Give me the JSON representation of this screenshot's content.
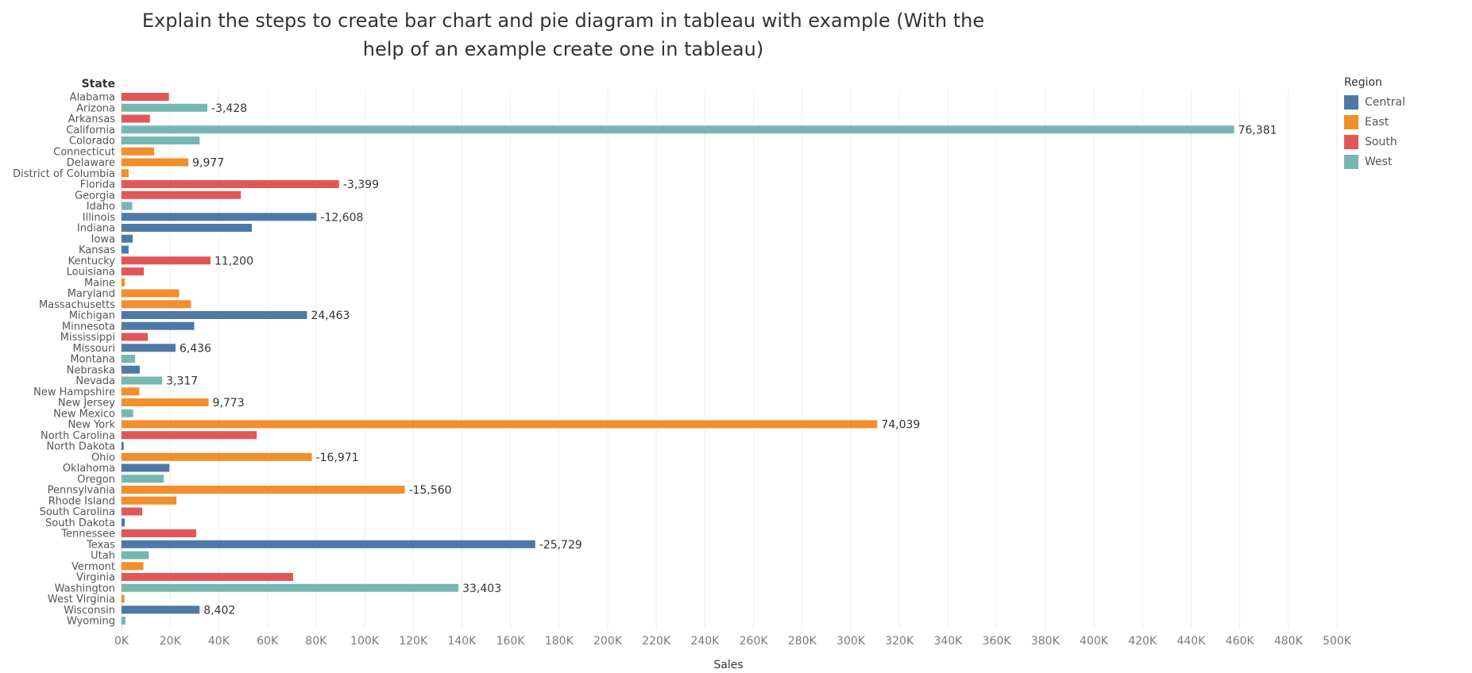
{
  "chart_data": {
    "type": "bar",
    "orientation": "horizontal",
    "title_lines": [
      "Explain the steps to create bar chart and pie diagram in tableau with example (With the",
      "help of an example create one in tableau)"
    ],
    "row_header": "State",
    "xlabel": "Sales",
    "xlim": [
      0,
      500000
    ],
    "x_ticks": [
      0,
      20000,
      40000,
      60000,
      80000,
      100000,
      120000,
      140000,
      160000,
      180000,
      200000,
      220000,
      240000,
      260000,
      280000,
      300000,
      320000,
      340000,
      360000,
      380000,
      400000,
      420000,
      440000,
      460000,
      480000,
      500000
    ],
    "x_tick_labels": [
      "0K",
      "20K",
      "40K",
      "60K",
      "80K",
      "100K",
      "120K",
      "140K",
      "160K",
      "180K",
      "200K",
      "220K",
      "240K",
      "260K",
      "280K",
      "300K",
      "320K",
      "340K",
      "360K",
      "380K",
      "400K",
      "420K",
      "440K",
      "460K",
      "480K",
      "500K"
    ],
    "grid": true,
    "legend": {
      "title": "Region",
      "position": "right",
      "items": [
        {
          "name": "Central",
          "color": "#4e79a7"
        },
        {
          "name": "East",
          "color": "#f28e2b"
        },
        {
          "name": "South",
          "color": "#e15759"
        },
        {
          "name": "West",
          "color": "#76b7b2"
        }
      ]
    },
    "rows": [
      {
        "state": "Alabama",
        "region": "South",
        "sales": 19500,
        "label": ""
      },
      {
        "state": "Arizona",
        "region": "West",
        "sales": 35300,
        "label": "-3,428"
      },
      {
        "state": "Arkansas",
        "region": "South",
        "sales": 11700,
        "label": ""
      },
      {
        "state": "California",
        "region": "West",
        "sales": 457700,
        "label": "76,381"
      },
      {
        "state": "Colorado",
        "region": "West",
        "sales": 32100,
        "label": ""
      },
      {
        "state": "Connecticut",
        "region": "East",
        "sales": 13400,
        "label": ""
      },
      {
        "state": "Delaware",
        "region": "East",
        "sales": 27500,
        "label": "9,977"
      },
      {
        "state": "District of Columbia",
        "region": "East",
        "sales": 2900,
        "label": ""
      },
      {
        "state": "Florida",
        "region": "South",
        "sales": 89500,
        "label": "-3,399"
      },
      {
        "state": "Georgia",
        "region": "South",
        "sales": 49100,
        "label": ""
      },
      {
        "state": "Idaho",
        "region": "West",
        "sales": 4400,
        "label": ""
      },
      {
        "state": "Illinois",
        "region": "Central",
        "sales": 80200,
        "label": "-12,608"
      },
      {
        "state": "Indiana",
        "region": "Central",
        "sales": 53600,
        "label": ""
      },
      {
        "state": "Iowa",
        "region": "Central",
        "sales": 4600,
        "label": ""
      },
      {
        "state": "Kansas",
        "region": "Central",
        "sales": 2900,
        "label": ""
      },
      {
        "state": "Kentucky",
        "region": "South",
        "sales": 36600,
        "label": "11,200"
      },
      {
        "state": "Louisiana",
        "region": "South",
        "sales": 9200,
        "label": ""
      },
      {
        "state": "Maine",
        "region": "East",
        "sales": 1300,
        "label": ""
      },
      {
        "state": "Maryland",
        "region": "East",
        "sales": 23700,
        "label": ""
      },
      {
        "state": "Massachusetts",
        "region": "East",
        "sales": 28600,
        "label": ""
      },
      {
        "state": "Michigan",
        "region": "Central",
        "sales": 76300,
        "label": "24,463"
      },
      {
        "state": "Minnesota",
        "region": "Central",
        "sales": 29900,
        "label": ""
      },
      {
        "state": "Mississippi",
        "region": "South",
        "sales": 10800,
        "label": ""
      },
      {
        "state": "Missouri",
        "region": "Central",
        "sales": 22200,
        "label": "6,436"
      },
      {
        "state": "Montana",
        "region": "West",
        "sales": 5600,
        "label": ""
      },
      {
        "state": "Nebraska",
        "region": "Central",
        "sales": 7500,
        "label": ""
      },
      {
        "state": "Nevada",
        "region": "West",
        "sales": 16700,
        "label": "3,317"
      },
      {
        "state": "New Hampshire",
        "region": "East",
        "sales": 7300,
        "label": ""
      },
      {
        "state": "New Jersey",
        "region": "East",
        "sales": 35800,
        "label": "9,773"
      },
      {
        "state": "New Mexico",
        "region": "West",
        "sales": 4800,
        "label": ""
      },
      {
        "state": "New York",
        "region": "East",
        "sales": 310900,
        "label": "74,039"
      },
      {
        "state": "North Carolina",
        "region": "South",
        "sales": 55600,
        "label": ""
      },
      {
        "state": "North Dakota",
        "region": "Central",
        "sales": 900,
        "label": ""
      },
      {
        "state": "Ohio",
        "region": "East",
        "sales": 78300,
        "label": "-16,971"
      },
      {
        "state": "Oklahoma",
        "region": "Central",
        "sales": 19700,
        "label": ""
      },
      {
        "state": "Oregon",
        "region": "West",
        "sales": 17400,
        "label": ""
      },
      {
        "state": "Pennsylvania",
        "region": "East",
        "sales": 116500,
        "label": "-15,560"
      },
      {
        "state": "Rhode Island",
        "region": "East",
        "sales": 22600,
        "label": ""
      },
      {
        "state": "South Carolina",
        "region": "South",
        "sales": 8500,
        "label": ""
      },
      {
        "state": "South Dakota",
        "region": "Central",
        "sales": 1300,
        "label": ""
      },
      {
        "state": "Tennessee",
        "region": "South",
        "sales": 30700,
        "label": ""
      },
      {
        "state": "Texas",
        "region": "Central",
        "sales": 170200,
        "label": "-25,729"
      },
      {
        "state": "Utah",
        "region": "West",
        "sales": 11200,
        "label": ""
      },
      {
        "state": "Vermont",
        "region": "East",
        "sales": 9000,
        "label": ""
      },
      {
        "state": "Virginia",
        "region": "South",
        "sales": 70600,
        "label": ""
      },
      {
        "state": "Washington",
        "region": "West",
        "sales": 138600,
        "label": "33,403"
      },
      {
        "state": "West Virginia",
        "region": "East",
        "sales": 1200,
        "label": ""
      },
      {
        "state": "Wisconsin",
        "region": "Central",
        "sales": 32100,
        "label": "8,402"
      },
      {
        "state": "Wyoming",
        "region": "West",
        "sales": 1600,
        "label": ""
      }
    ]
  }
}
